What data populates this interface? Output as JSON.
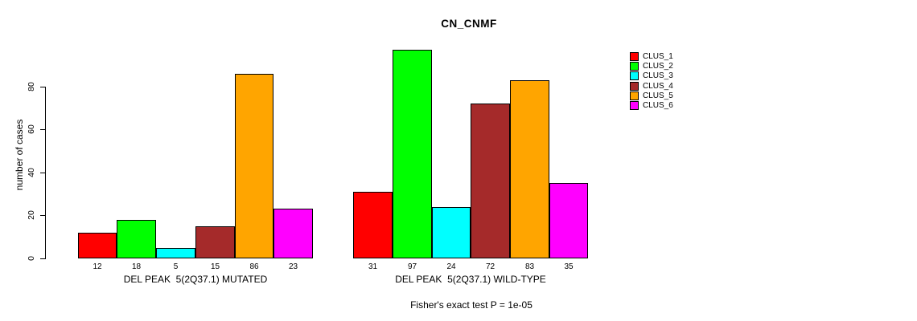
{
  "chart_data": {
    "type": "bar",
    "title": "CN_CNMF",
    "xlabel": "",
    "ylabel": "number of cases",
    "yticks": [
      0,
      20,
      40,
      60,
      80
    ],
    "ylim": [
      0,
      100
    ],
    "grid": false,
    "categories": [
      "CLUS_1",
      "CLUS_2",
      "CLUS_3",
      "CLUS_4",
      "CLUS_5",
      "CLUS_6"
    ],
    "colors": [
      "#FF0000",
      "#00FF00",
      "#00FFFF",
      "#A52A2A",
      "#FFA500",
      "#FF00FF"
    ],
    "groups": [
      {
        "label": "DEL PEAK  5(2Q37.1) MUTATED",
        "values": [
          12,
          18,
          5,
          15,
          86,
          23
        ]
      },
      {
        "label": "DEL PEAK  5(2Q37.1) WILD-TYPE",
        "values": [
          31,
          97,
          24,
          72,
          83,
          35
        ]
      }
    ],
    "bar_value_labels": [
      [
        12,
        18,
        5,
        15,
        86,
        23
      ],
      [
        31,
        97,
        24,
        72,
        83,
        35
      ]
    ],
    "annotation": "Fisher's exact test P = 1e-05",
    "legend": {
      "position": "top-right",
      "entries": [
        "CLUS_1",
        "CLUS_2",
        "CLUS_3",
        "CLUS_4",
        "CLUS_5",
        "CLUS_6"
      ]
    }
  }
}
